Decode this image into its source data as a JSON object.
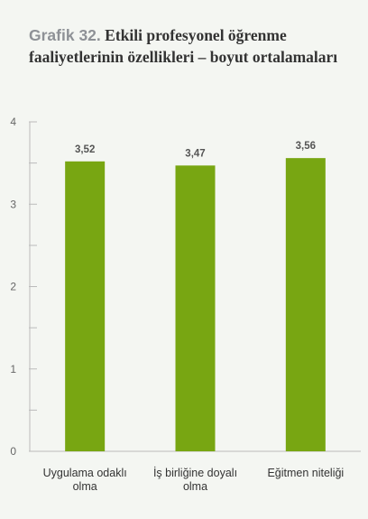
{
  "title_prefix": "Grafik 32.",
  "title_text": "Etkili profesyonel öğrenme faaliyetlerinin özellikleri – boyut ortalamaları",
  "chart_data": {
    "type": "bar",
    "categories": [
      [
        "Uygulama odaklı",
        "olma"
      ],
      [
        "İş birliğine doyalı",
        "olma"
      ],
      [
        "Eğitmen niteliği"
      ]
    ],
    "values": [
      3.52,
      3.47,
      3.56
    ],
    "data_labels": [
      "3,52",
      "3,47",
      "3,56"
    ],
    "ylim": [
      0,
      4
    ],
    "yticks": [
      0,
      1,
      2,
      3,
      4
    ],
    "ytick_labels": [
      "0",
      "1",
      "2",
      "3",
      "4"
    ],
    "bar_color": "#78a612",
    "axis_color": "#bbbbbb",
    "grid": false
  }
}
